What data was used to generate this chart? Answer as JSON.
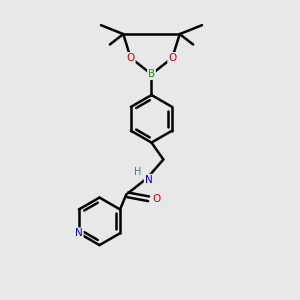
{
  "bg_color": "#e8e8e8",
  "bond_color": "#000000",
  "bond_width": 1.8,
  "B_color": "#00aa00",
  "O_color": "#cc0000",
  "N_color": "#0000cc",
  "H_color": "#408080",
  "xlim": [
    0,
    10
  ],
  "ylim": [
    0,
    10
  ]
}
